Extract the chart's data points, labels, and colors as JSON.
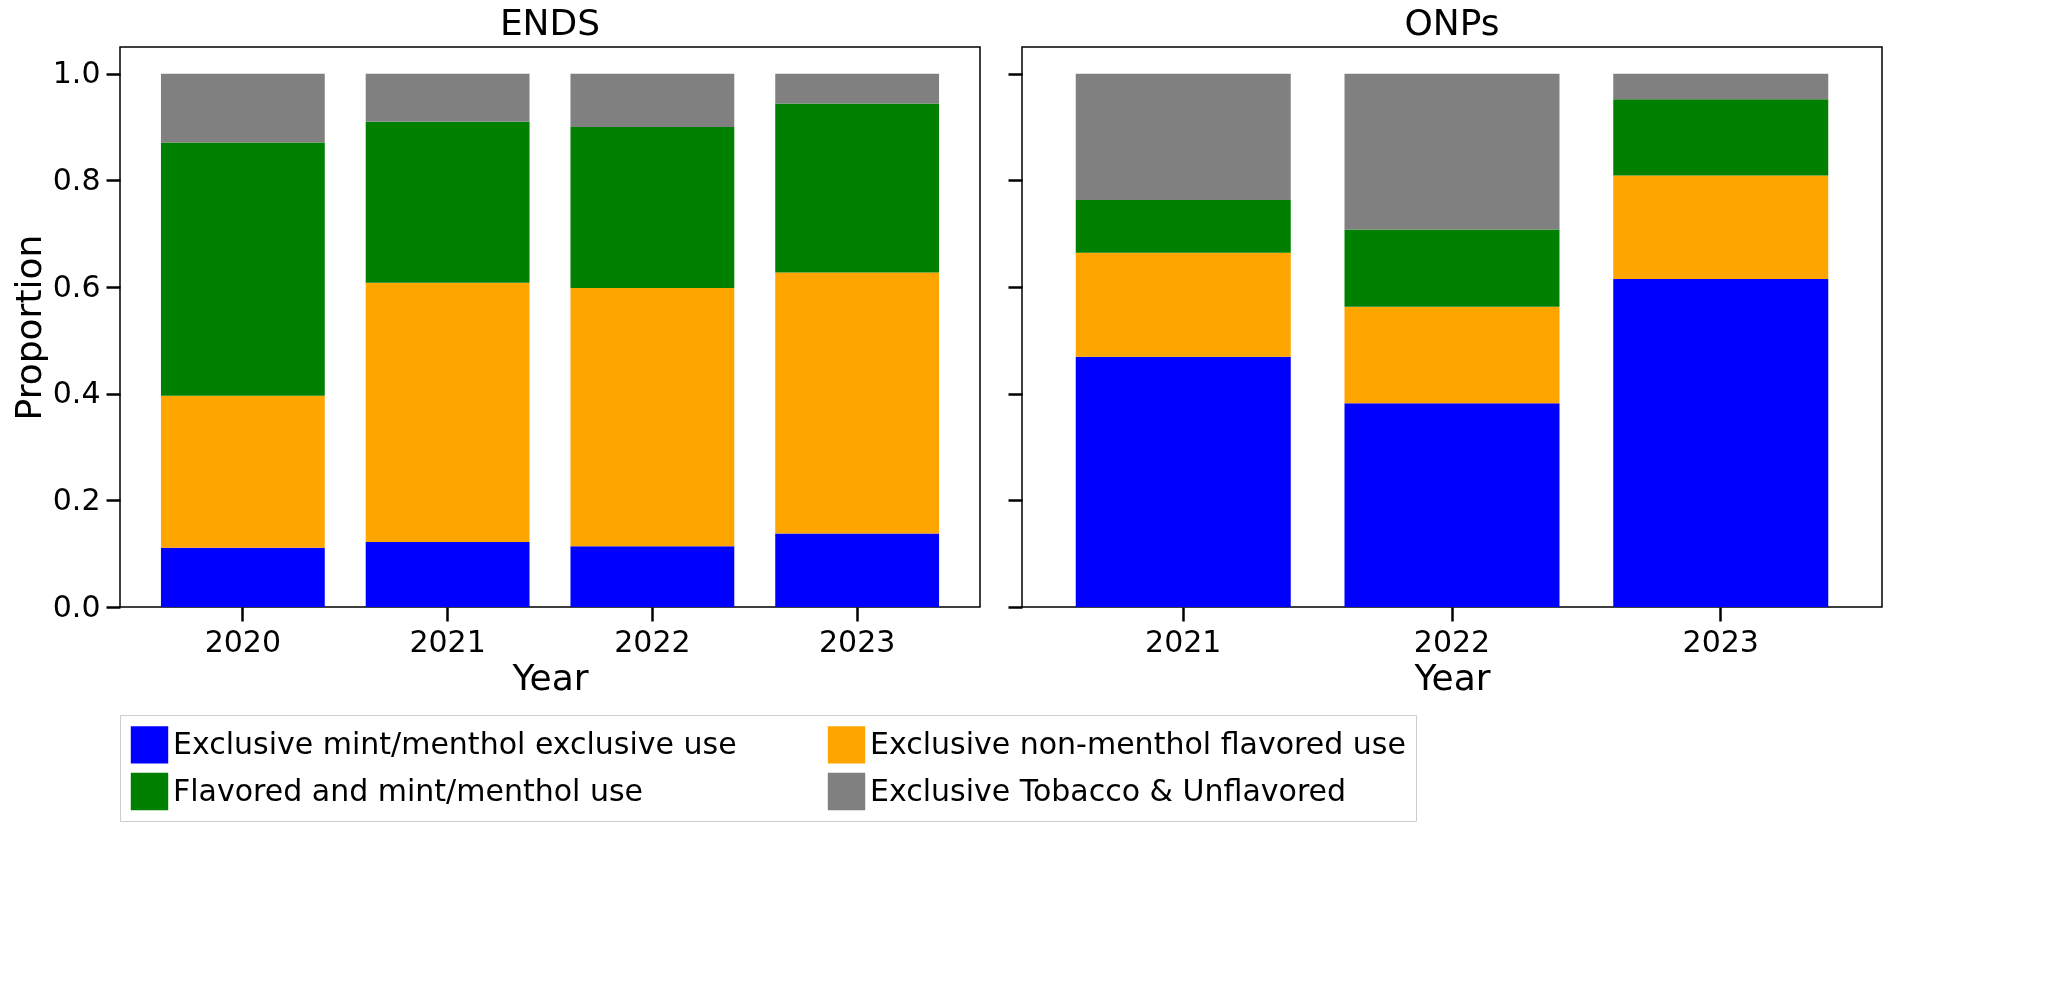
{
  "chart_data": [
    {
      "type": "bar",
      "title": "ENDS",
      "xlabel": "Year",
      "ylabel": "Proportion",
      "stacked": true,
      "legend": "bottom",
      "grid": false,
      "categories": [
        "2020",
        "2021",
        "2022",
        "2023"
      ],
      "ylim": [
        0,
        1.05
      ],
      "yticks": [
        {
          "value": 0,
          "label": "0.0"
        },
        0.2,
        0.4,
        0.6,
        0.8,
        {
          "value": 1,
          "label": "1.0"
        }
      ],
      "series": [
        {
          "name": "Exclusive mint/menthol exclusive use",
          "color": "#0000ff",
          "values": [
            0.111,
            0.122,
            0.114,
            0.138
          ]
        },
        {
          "name": "Exclusive non-menthol flavored use",
          "color": "#ffa500",
          "values": [
            0.285,
            0.486,
            0.484,
            0.489
          ]
        },
        {
          "name": "Flavored and mint/menthol use",
          "color": "#008000",
          "values": [
            0.475,
            0.302,
            0.302,
            0.317
          ]
        },
        {
          "name": "Exclusive Tobacco & Unflavored",
          "color": "#808080",
          "values": [
            0.129,
            0.09,
            0.1,
            0.056
          ]
        }
      ]
    },
    {
      "type": "bar",
      "title": "ONPs",
      "xlabel": "Year",
      "stacked": true,
      "legend": "bottom",
      "grid": false,
      "tick_labels": "x",
      "categories": [
        "2021",
        "2022",
        "2023"
      ],
      "ylim": [
        0,
        1.05
      ],
      "yticks": [
        {
          "value": 0,
          "label": null
        },
        {
          "value": 0.2,
          "label": null
        },
        {
          "value": 0.4,
          "label": null
        },
        {
          "value": 0.6,
          "label": null
        },
        {
          "value": 0.8,
          "label": null
        },
        {
          "value": 1,
          "label": null
        }
      ],
      "series": [
        {
          "name": "Exclusive mint/menthol exclusive use",
          "color": "#0000ff",
          "values": [
            0.469,
            0.382,
            0.615
          ]
        },
        {
          "name": "Exclusive non-menthol flavored use",
          "color": "#ffa500",
          "values": [
            0.195,
            0.181,
            0.194
          ]
        },
        {
          "name": "Flavored and mint/menthol use",
          "color": "#008000",
          "values": [
            0.099,
            0.145,
            0.143
          ]
        },
        {
          "name": "Exclusive Tobacco & Unflavored",
          "color": "#808080",
          "values": [
            0.237,
            0.292,
            0.048
          ]
        }
      ]
    }
  ]
}
